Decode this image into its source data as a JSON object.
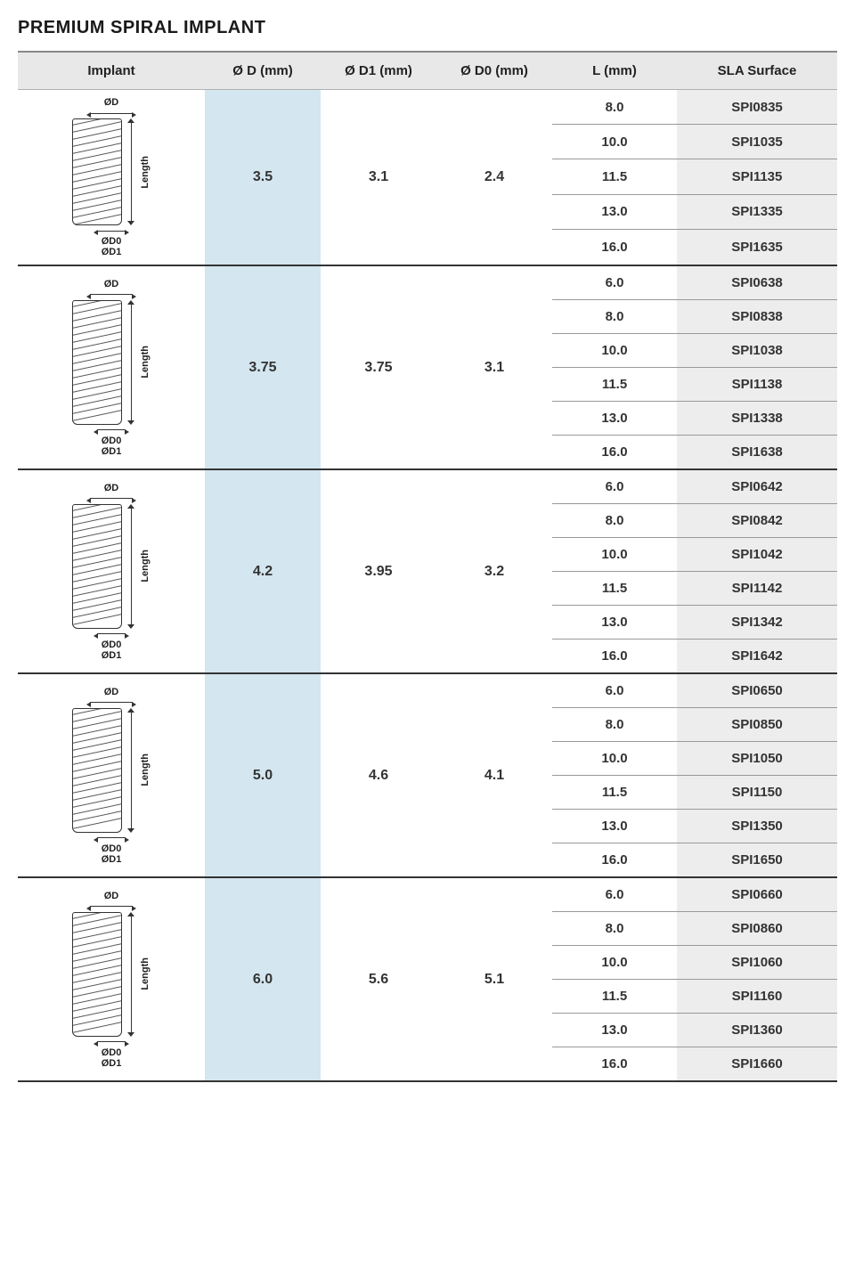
{
  "title": "PREMIUM SPIRAL IMPLANT",
  "columns": {
    "implant": "Implant",
    "d": "Ø D (mm)",
    "d1": "Ø D1 (mm)",
    "d0": "Ø D0 (mm)",
    "l": "L (mm)",
    "sla": "SLA Surface"
  },
  "diagram_labels": {
    "od": "ØD",
    "od0": "ØD0",
    "od1": "ØD1",
    "length": "Length"
  },
  "colors": {
    "header_bg": "#e8e8e8",
    "d_col_bg": "#d4e6ef",
    "sla_col_bg": "#ededed",
    "row_border": "#999999",
    "group_border": "#333333",
    "text": "#222222"
  },
  "groups": [
    {
      "d": "3.5",
      "d1": "3.1",
      "d0": "2.4",
      "body_height": 120,
      "variants": [
        {
          "l": "8.0",
          "sla": "SPI0835"
        },
        {
          "l": "10.0",
          "sla": "SPI1035"
        },
        {
          "l": "11.5",
          "sla": "SPI1135"
        },
        {
          "l": "13.0",
          "sla": "SPI1335"
        },
        {
          "l": "16.0",
          "sla": "SPI1635"
        }
      ]
    },
    {
      "d": "3.75",
      "d1": "3.75",
      "d0": "3.1",
      "body_height": 140,
      "variants": [
        {
          "l": "6.0",
          "sla": "SPI0638"
        },
        {
          "l": "8.0",
          "sla": "SPI0838"
        },
        {
          "l": "10.0",
          "sla": "SPI1038"
        },
        {
          "l": "11.5",
          "sla": "SPI1138"
        },
        {
          "l": "13.0",
          "sla": "SPI1338"
        },
        {
          "l": "16.0",
          "sla": "SPI1638"
        }
      ]
    },
    {
      "d": "4.2",
      "d1": "3.95",
      "d0": "3.2",
      "body_height": 140,
      "variants": [
        {
          "l": "6.0",
          "sla": "SPI0642"
        },
        {
          "l": "8.0",
          "sla": "SPI0842"
        },
        {
          "l": "10.0",
          "sla": "SPI1042"
        },
        {
          "l": "11.5",
          "sla": "SPI1142"
        },
        {
          "l": "13.0",
          "sla": "SPI1342"
        },
        {
          "l": "16.0",
          "sla": "SPI1642"
        }
      ]
    },
    {
      "d": "5.0",
      "d1": "4.6",
      "d0": "4.1",
      "body_height": 140,
      "variants": [
        {
          "l": "6.0",
          "sla": "SPI0650"
        },
        {
          "l": "8.0",
          "sla": "SPI0850"
        },
        {
          "l": "10.0",
          "sla": "SPI1050"
        },
        {
          "l": "11.5",
          "sla": "SPI1150"
        },
        {
          "l": "13.0",
          "sla": "SPI1350"
        },
        {
          "l": "16.0",
          "sla": "SPI1650"
        }
      ]
    },
    {
      "d": "6.0",
      "d1": "5.6",
      "d0": "5.1",
      "body_height": 140,
      "variants": [
        {
          "l": "6.0",
          "sla": "SPI0660"
        },
        {
          "l": "8.0",
          "sla": "SPI0860"
        },
        {
          "l": "10.0",
          "sla": "SPI1060"
        },
        {
          "l": "11.5",
          "sla": "SPI1160"
        },
        {
          "l": "13.0",
          "sla": "SPI1360"
        },
        {
          "l": "16.0",
          "sla": "SPI1660"
        }
      ]
    }
  ]
}
